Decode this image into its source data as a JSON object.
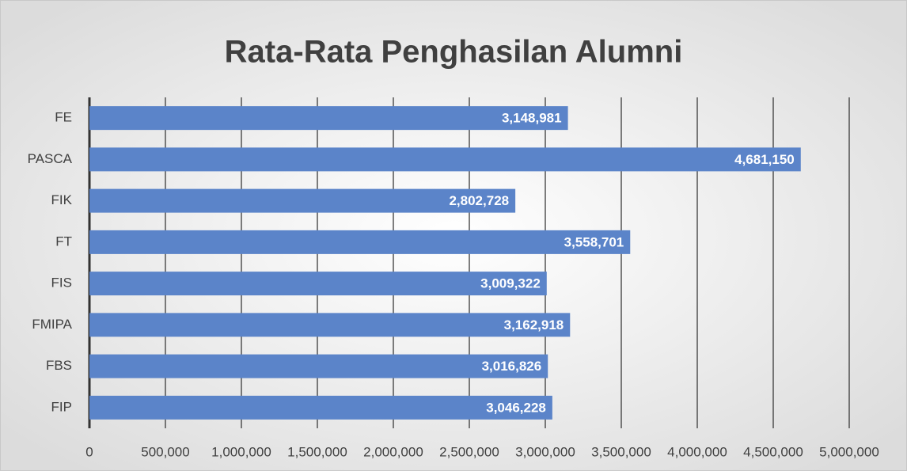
{
  "chart_data": {
    "type": "barh",
    "title": "Rata-Rata Penghasilan Alumni",
    "categories": [
      "FE",
      "PASCA",
      "FIK",
      "FT",
      "FIS",
      "FMIPA",
      "FBS",
      "FIP"
    ],
    "values": [
      3148981,
      4681150,
      2802728,
      3558701,
      3009322,
      3162918,
      3016826,
      3046228
    ],
    "value_labels": [
      "3,148,981",
      "4,681,150",
      "2,802,728",
      "3,558,701",
      "3,009,322",
      "3,162,918",
      "3,016,826",
      "3,046,228"
    ],
    "color": "#5b84c9",
    "xlim": [
      0,
      5000000
    ],
    "xticks": [
      0,
      {
        "value": 500000,
        "label": "500,000"
      },
      {
        "value": 1000000,
        "label": "1,000,000"
      },
      {
        "value": 1500000,
        "label": "1,500,000"
      },
      {
        "value": 2000000,
        "label": "2,000,000"
      },
      {
        "value": 2500000,
        "label": "2,500,000"
      },
      {
        "value": 3000000,
        "label": "3,000,000"
      },
      {
        "value": 3500000,
        "label": "3,500,000"
      },
      {
        "value": 4000000,
        "label": "4,000,000"
      },
      {
        "value": 4500000,
        "label": "4,500,000"
      },
      {
        "value": 5000000,
        "label": "5,000,000"
      }
    ],
    "grid": true
  }
}
